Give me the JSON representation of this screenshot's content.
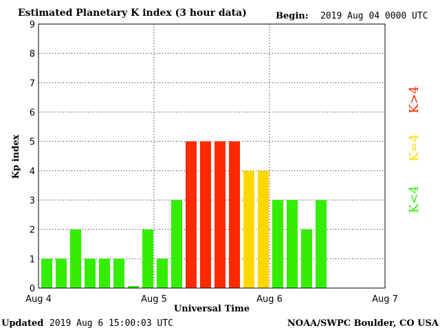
{
  "header": {
    "title": "Estimated Planetary K index (3 hour data)",
    "begin_label": "Begin:",
    "begin_value": "2019 Aug 04 0000 UTC"
  },
  "footer": {
    "updated_label": "Updated",
    "updated_value": "2019 Aug  6 15:00:03 UTC",
    "source": "NOAA/SWPC Boulder, CO USA"
  },
  "legend": [
    {
      "label": "K>4",
      "color": "#ff2a00"
    },
    {
      "label": "K=4",
      "color": "#ffd700"
    },
    {
      "label": "K<4",
      "color": "#33ee00"
    }
  ],
  "chart_data": {
    "type": "bar",
    "title": "Estimated Planetary K index (3 hour data)",
    "xlabel": "Universal Time",
    "ylabel": "Kp index",
    "ylim": [
      0,
      9
    ],
    "yticks": [
      0,
      1,
      2,
      3,
      4,
      5,
      6,
      7,
      8,
      9
    ],
    "xticks": [
      "Aug 4",
      "Aug 5",
      "Aug 6",
      "Aug 7"
    ],
    "grid": true,
    "bar_interval_hours": 3,
    "categories": [
      "Aug 4 00",
      "Aug 4 03",
      "Aug 4 06",
      "Aug 4 09",
      "Aug 4 12",
      "Aug 4 15",
      "Aug 4 18",
      "Aug 4 21",
      "Aug 5 00",
      "Aug 5 03",
      "Aug 5 06",
      "Aug 5 09",
      "Aug 5 12",
      "Aug 5 15",
      "Aug 5 18",
      "Aug 5 21",
      "Aug 6 00",
      "Aug 6 03",
      "Aug 6 06",
      "Aug 6 09",
      "Aug 6 12"
    ],
    "values": [
      1,
      1,
      2,
      1,
      1,
      1,
      0.07,
      2,
      1,
      3,
      5,
      5,
      5,
      5,
      4,
      4,
      3,
      3,
      2,
      3,
      null
    ],
    "colors": {
      "low": "#33ee00",
      "equal": "#ffd700",
      "high": "#ff2a00"
    }
  }
}
